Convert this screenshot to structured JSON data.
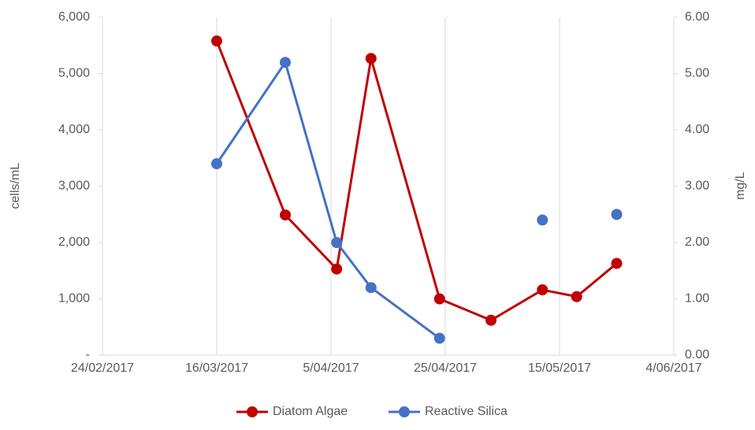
{
  "chart_data": {
    "type": "line",
    "y_label": "cells/mL",
    "y2_label": "mg/L",
    "x": [
      "16/03/2017",
      "28/03/2017",
      "6/04/2017",
      "12/04/2017",
      "24/04/2017",
      "3/05/2017",
      "12/05/2017",
      "18/05/2017",
      "25/05/2017"
    ],
    "xlim": [
      "24/02/2017",
      "4/06/2017"
    ],
    "xticks": [
      "24/02/2017",
      "16/03/2017",
      "5/04/2017",
      "25/04/2017",
      "15/05/2017",
      "4/06/2017"
    ],
    "ylim": [
      0,
      6000
    ],
    "yticks": [
      {
        "value": 0,
        "label": "-"
      },
      {
        "value": 1000,
        "label": "1,000"
      },
      {
        "value": 2000,
        "label": "2,000"
      },
      {
        "value": 3000,
        "label": "3,000"
      },
      {
        "value": 4000,
        "label": "4,000"
      },
      {
        "value": 5000,
        "label": "5,000"
      },
      {
        "value": 6000,
        "label": "6,000"
      }
    ],
    "y2lim": [
      0,
      6
    ],
    "y2ticks": [
      {
        "value": 0,
        "label": "0.00"
      },
      {
        "value": 1,
        "label": "1.00"
      },
      {
        "value": 2,
        "label": "2.00"
      },
      {
        "value": 3,
        "label": "3.00"
      },
      {
        "value": 4,
        "label": "4.00"
      },
      {
        "value": 5,
        "label": "5.00"
      },
      {
        "value": 6,
        "label": "6.00"
      }
    ],
    "grid": "x",
    "legend": "bottom",
    "series": [
      {
        "name": "Diatom Algae",
        "color": "#c00000",
        "values": [
          5580,
          2490,
          1530,
          5270,
          1000,
          620,
          1160,
          1040,
          1630
        ]
      },
      {
        "name": "Reactive Silica",
        "color": "#4472c4",
        "axis": "y2",
        "values": [
          3.4,
          5.2,
          2.0,
          1.2,
          0.3,
          null,
          2.4,
          null,
          2.5
        ]
      }
    ]
  }
}
